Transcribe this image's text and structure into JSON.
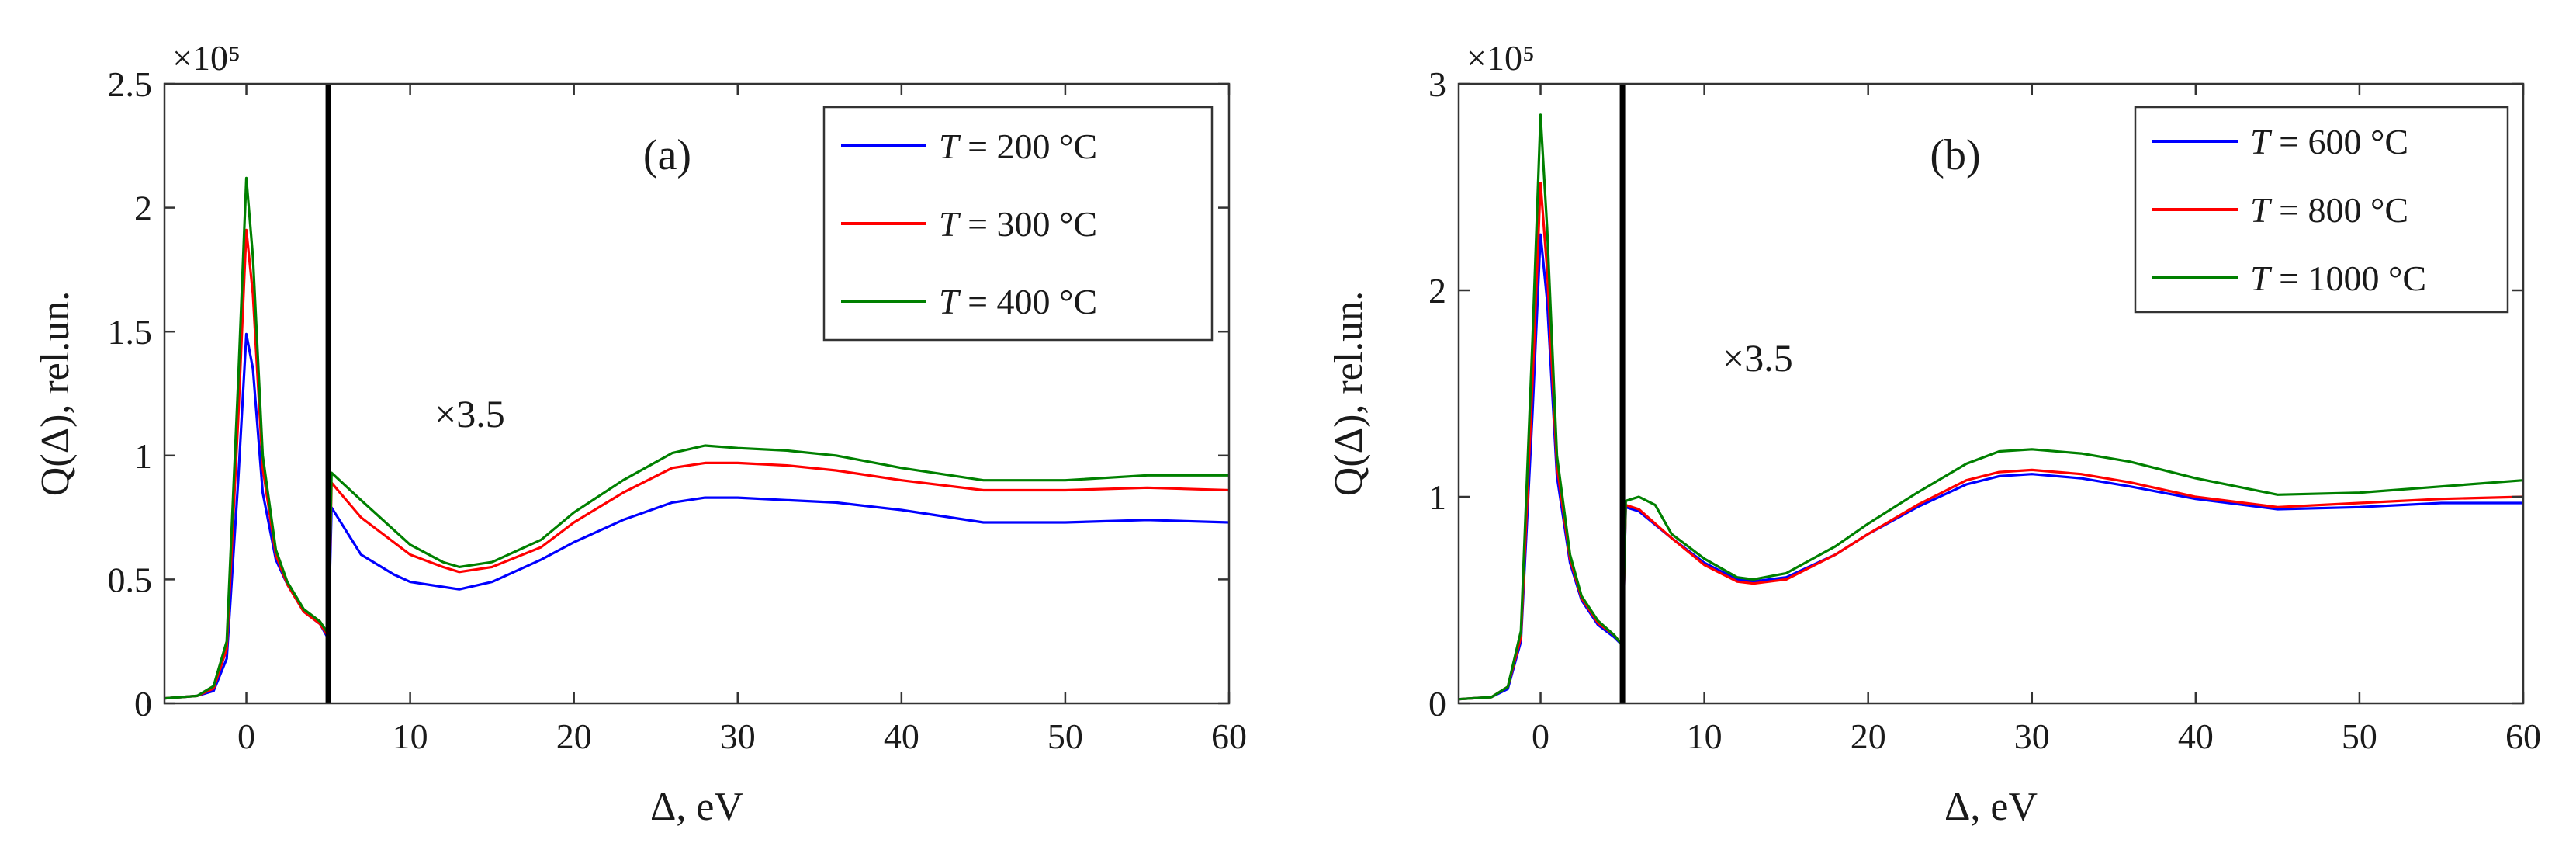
{
  "chart_data": [
    {
      "type": "line",
      "panel_label": "(a)",
      "xlabel": "Δ, eV",
      "ylabel": "Q(Δ), rel.un.",
      "y_exponent_label": "×10⁵",
      "multiplier_label": "×3.5",
      "split_x": 5,
      "xlim": [
        -5,
        60
      ],
      "ylim": [
        0,
        2.5
      ],
      "xticks": [
        0,
        10,
        20,
        30,
        40,
        50,
        60
      ],
      "yticks": [
        0,
        0.5,
        1,
        1.5,
        2,
        2.5
      ],
      "ytick_labels": [
        "0",
        "0.5",
        "1",
        "1.5",
        "2",
        "2.5"
      ],
      "grid": false,
      "legend_position": "top-right",
      "series": [
        {
          "name": "T = 200 °C",
          "color": "#0000ff",
          "legend_parts": [
            "T",
            " = 200 °C"
          ],
          "x": [
            -5,
            -3,
            -2,
            -1.2,
            -0.5,
            0,
            0.4,
            1,
            1.8,
            2.5,
            3.5,
            4.5,
            5,
            5.2,
            7,
            9,
            10,
            12,
            13,
            15,
            18,
            20,
            23,
            26,
            28,
            30,
            33,
            36,
            40,
            45,
            50,
            55,
            60
          ],
          "y": [
            0.02,
            0.03,
            0.05,
            0.18,
            0.9,
            1.49,
            1.35,
            0.85,
            0.58,
            0.48,
            0.37,
            0.32,
            0.26,
            0.79,
            0.6,
            0.52,
            0.49,
            0.47,
            0.46,
            0.49,
            0.58,
            0.65,
            0.74,
            0.81,
            0.83,
            0.83,
            0.82,
            0.81,
            0.78,
            0.73,
            0.73,
            0.74,
            0.73
          ]
        },
        {
          "name": "T = 300 °C",
          "color": "#ff0000",
          "legend_parts": [
            "T",
            " = 300 °C"
          ],
          "x": [
            -5,
            -3,
            -2,
            -1.2,
            -0.5,
            0,
            0.4,
            1,
            1.8,
            2.5,
            3.5,
            4.5,
            5,
            5.2,
            7,
            9,
            10,
            12,
            13,
            15,
            18,
            20,
            23,
            26,
            28,
            30,
            33,
            36,
            40,
            45,
            50,
            55,
            60
          ],
          "y": [
            0.02,
            0.03,
            0.06,
            0.22,
            1.15,
            1.91,
            1.65,
            0.95,
            0.6,
            0.48,
            0.37,
            0.32,
            0.27,
            0.89,
            0.75,
            0.65,
            0.6,
            0.55,
            0.53,
            0.55,
            0.63,
            0.73,
            0.85,
            0.95,
            0.97,
            0.97,
            0.96,
            0.94,
            0.9,
            0.86,
            0.86,
            0.87,
            0.86
          ]
        },
        {
          "name": "T = 400 °C",
          "color": "#008000",
          "legend_parts": [
            "T",
            " = 400 °C"
          ],
          "x": [
            -5,
            -3,
            -2,
            -1.2,
            -0.5,
            0,
            0.4,
            1,
            1.8,
            2.5,
            3.5,
            4.5,
            5,
            5.2,
            7,
            9,
            10,
            12,
            13,
            15,
            18,
            20,
            23,
            26,
            28,
            30,
            33,
            36,
            40,
            45,
            50,
            55,
            60
          ],
          "y": [
            0.02,
            0.03,
            0.07,
            0.25,
            1.3,
            2.12,
            1.8,
            1.0,
            0.62,
            0.49,
            0.38,
            0.33,
            0.28,
            0.93,
            0.82,
            0.7,
            0.64,
            0.57,
            0.55,
            0.57,
            0.66,
            0.77,
            0.9,
            1.01,
            1.04,
            1.03,
            1.02,
            1.0,
            0.95,
            0.9,
            0.9,
            0.92,
            0.92
          ]
        }
      ]
    },
    {
      "type": "line",
      "panel_label": "(b)",
      "xlabel": "Δ, eV",
      "ylabel": "Q(Δ), rel.un.",
      "y_exponent_label": "×10⁵",
      "multiplier_label": "×3.5",
      "split_x": 5,
      "xlim": [
        -5,
        60
      ],
      "ylim": [
        0,
        3
      ],
      "xticks": [
        0,
        10,
        20,
        30,
        40,
        50,
        60
      ],
      "yticks": [
        0,
        1,
        2,
        3
      ],
      "ytick_labels": [
        "0",
        "1",
        "2",
        "3"
      ],
      "grid": false,
      "legend_position": "top-right",
      "series": [
        {
          "name": "T = 600 °C",
          "color": "#0000ff",
          "legend_parts": [
            "T",
            " = 600 °C"
          ],
          "x": [
            -5,
            -3,
            -2,
            -1.2,
            -0.5,
            0,
            0.4,
            1,
            1.8,
            2.5,
            3.5,
            4.5,
            5,
            5.2,
            6,
            8,
            10,
            12,
            13,
            15,
            18,
            20,
            23,
            26,
            28,
            30,
            33,
            36,
            40,
            45,
            50,
            55,
            60
          ],
          "y": [
            0.02,
            0.03,
            0.07,
            0.3,
            1.4,
            2.27,
            1.95,
            1.1,
            0.68,
            0.5,
            0.38,
            0.32,
            0.28,
            0.95,
            0.93,
            0.8,
            0.68,
            0.6,
            0.59,
            0.61,
            0.72,
            0.82,
            0.95,
            1.06,
            1.1,
            1.11,
            1.09,
            1.05,
            0.99,
            0.94,
            0.95,
            0.97,
            0.97
          ]
        },
        {
          "name": "T = 800 °C",
          "color": "#ff0000",
          "legend_parts": [
            "T",
            " = 800 °C"
          ],
          "x": [
            -5,
            -3,
            -2,
            -1.2,
            -0.5,
            0,
            0.4,
            1,
            1.8,
            2.5,
            3.5,
            4.5,
            5,
            5.2,
            6,
            8,
            10,
            12,
            13,
            15,
            18,
            20,
            23,
            26,
            28,
            30,
            33,
            36,
            40,
            45,
            50,
            55,
            60
          ],
          "y": [
            0.02,
            0.03,
            0.08,
            0.32,
            1.55,
            2.52,
            2.1,
            1.15,
            0.7,
            0.51,
            0.39,
            0.33,
            0.28,
            0.96,
            0.94,
            0.8,
            0.67,
            0.59,
            0.58,
            0.6,
            0.72,
            0.82,
            0.96,
            1.08,
            1.12,
            1.13,
            1.11,
            1.07,
            1.0,
            0.95,
            0.97,
            0.99,
            1.0
          ]
        },
        {
          "name": "T = 1000 °C",
          "color": "#008000",
          "legend_parts": [
            "T",
            " = 1000 °C"
          ],
          "x": [
            -5,
            -3,
            -2,
            -1.2,
            -0.5,
            0,
            0.4,
            1,
            1.8,
            2.5,
            3.5,
            4.5,
            5,
            5.2,
            6,
            7,
            8,
            10,
            12,
            13,
            15,
            18,
            20,
            23,
            26,
            28,
            30,
            33,
            36,
            40,
            45,
            50,
            55,
            60
          ],
          "y": [
            0.02,
            0.03,
            0.08,
            0.35,
            1.75,
            2.85,
            2.3,
            1.2,
            0.72,
            0.52,
            0.4,
            0.33,
            0.28,
            0.98,
            1.0,
            0.96,
            0.82,
            0.7,
            0.61,
            0.6,
            0.63,
            0.76,
            0.87,
            1.02,
            1.16,
            1.22,
            1.23,
            1.21,
            1.17,
            1.09,
            1.01,
            1.02,
            1.05,
            1.08
          ]
        }
      ]
    }
  ]
}
